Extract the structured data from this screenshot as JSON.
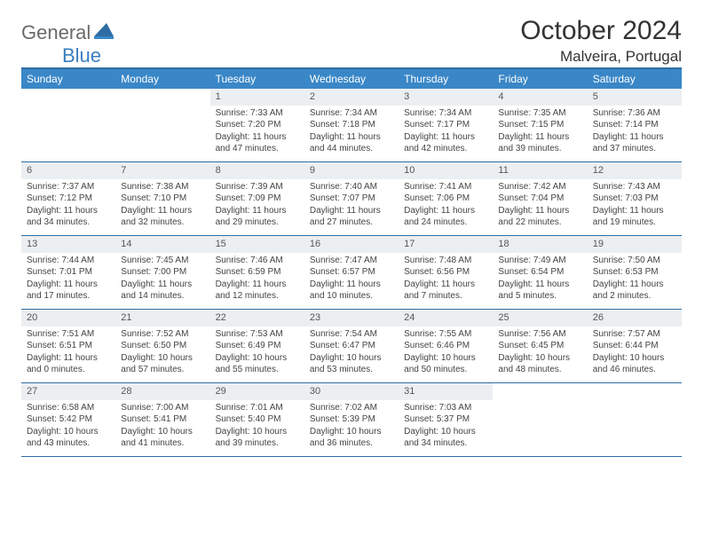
{
  "logo": {
    "text1": "General",
    "text2": "Blue"
  },
  "title": "October 2024",
  "location": "Malveira, Portugal",
  "colors": {
    "header_bg": "#3a87c7",
    "header_text": "#ffffff",
    "border": "#2e6da4",
    "daynum_bg": "#eceff1",
    "logo_gray": "#6a6a6a",
    "logo_blue": "#3a7ebf"
  },
  "dayNames": [
    "Sunday",
    "Monday",
    "Tuesday",
    "Wednesday",
    "Thursday",
    "Friday",
    "Saturday"
  ],
  "weeks": [
    [
      null,
      null,
      {
        "n": "1",
        "sr": "7:33 AM",
        "ss": "7:20 PM",
        "dl": "11 hours and 47 minutes."
      },
      {
        "n": "2",
        "sr": "7:34 AM",
        "ss": "7:18 PM",
        "dl": "11 hours and 44 minutes."
      },
      {
        "n": "3",
        "sr": "7:34 AM",
        "ss": "7:17 PM",
        "dl": "11 hours and 42 minutes."
      },
      {
        "n": "4",
        "sr": "7:35 AM",
        "ss": "7:15 PM",
        "dl": "11 hours and 39 minutes."
      },
      {
        "n": "5",
        "sr": "7:36 AM",
        "ss": "7:14 PM",
        "dl": "11 hours and 37 minutes."
      }
    ],
    [
      {
        "n": "6",
        "sr": "7:37 AM",
        "ss": "7:12 PM",
        "dl": "11 hours and 34 minutes."
      },
      {
        "n": "7",
        "sr": "7:38 AM",
        "ss": "7:10 PM",
        "dl": "11 hours and 32 minutes."
      },
      {
        "n": "8",
        "sr": "7:39 AM",
        "ss": "7:09 PM",
        "dl": "11 hours and 29 minutes."
      },
      {
        "n": "9",
        "sr": "7:40 AM",
        "ss": "7:07 PM",
        "dl": "11 hours and 27 minutes."
      },
      {
        "n": "10",
        "sr": "7:41 AM",
        "ss": "7:06 PM",
        "dl": "11 hours and 24 minutes."
      },
      {
        "n": "11",
        "sr": "7:42 AM",
        "ss": "7:04 PM",
        "dl": "11 hours and 22 minutes."
      },
      {
        "n": "12",
        "sr": "7:43 AM",
        "ss": "7:03 PM",
        "dl": "11 hours and 19 minutes."
      }
    ],
    [
      {
        "n": "13",
        "sr": "7:44 AM",
        "ss": "7:01 PM",
        "dl": "11 hours and 17 minutes."
      },
      {
        "n": "14",
        "sr": "7:45 AM",
        "ss": "7:00 PM",
        "dl": "11 hours and 14 minutes."
      },
      {
        "n": "15",
        "sr": "7:46 AM",
        "ss": "6:59 PM",
        "dl": "11 hours and 12 minutes."
      },
      {
        "n": "16",
        "sr": "7:47 AM",
        "ss": "6:57 PM",
        "dl": "11 hours and 10 minutes."
      },
      {
        "n": "17",
        "sr": "7:48 AM",
        "ss": "6:56 PM",
        "dl": "11 hours and 7 minutes."
      },
      {
        "n": "18",
        "sr": "7:49 AM",
        "ss": "6:54 PM",
        "dl": "11 hours and 5 minutes."
      },
      {
        "n": "19",
        "sr": "7:50 AM",
        "ss": "6:53 PM",
        "dl": "11 hours and 2 minutes."
      }
    ],
    [
      {
        "n": "20",
        "sr": "7:51 AM",
        "ss": "6:51 PM",
        "dl": "11 hours and 0 minutes."
      },
      {
        "n": "21",
        "sr": "7:52 AM",
        "ss": "6:50 PM",
        "dl": "10 hours and 57 minutes."
      },
      {
        "n": "22",
        "sr": "7:53 AM",
        "ss": "6:49 PM",
        "dl": "10 hours and 55 minutes."
      },
      {
        "n": "23",
        "sr": "7:54 AM",
        "ss": "6:47 PM",
        "dl": "10 hours and 53 minutes."
      },
      {
        "n": "24",
        "sr": "7:55 AM",
        "ss": "6:46 PM",
        "dl": "10 hours and 50 minutes."
      },
      {
        "n": "25",
        "sr": "7:56 AM",
        "ss": "6:45 PM",
        "dl": "10 hours and 48 minutes."
      },
      {
        "n": "26",
        "sr": "7:57 AM",
        "ss": "6:44 PM",
        "dl": "10 hours and 46 minutes."
      }
    ],
    [
      {
        "n": "27",
        "sr": "6:58 AM",
        "ss": "5:42 PM",
        "dl": "10 hours and 43 minutes."
      },
      {
        "n": "28",
        "sr": "7:00 AM",
        "ss": "5:41 PM",
        "dl": "10 hours and 41 minutes."
      },
      {
        "n": "29",
        "sr": "7:01 AM",
        "ss": "5:40 PM",
        "dl": "10 hours and 39 minutes."
      },
      {
        "n": "30",
        "sr": "7:02 AM",
        "ss": "5:39 PM",
        "dl": "10 hours and 36 minutes."
      },
      {
        "n": "31",
        "sr": "7:03 AM",
        "ss": "5:37 PM",
        "dl": "10 hours and 34 minutes."
      },
      null,
      null
    ]
  ],
  "labels": {
    "sunrise": "Sunrise:",
    "sunset": "Sunset:",
    "daylight": "Daylight:"
  }
}
